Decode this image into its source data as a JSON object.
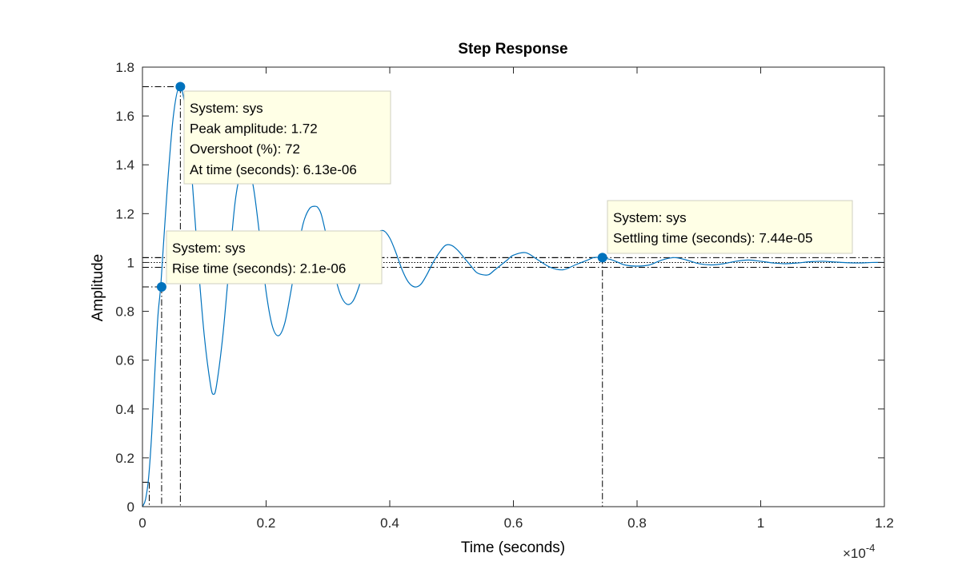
{
  "chart_data": {
    "type": "line",
    "title": "Step Response",
    "xlabel": "Time (seconds)",
    "ylabel": "Amplitude",
    "x_exponent_label": "×10",
    "x_exponent_power": "-4",
    "xlim": [
      0,
      1.2
    ],
    "ylim": [
      0,
      1.8
    ],
    "x_scale_factor": 0.0001,
    "xticks": [
      "0",
      "0.2",
      "0.4",
      "0.6",
      "0.8",
      "1",
      "1.2"
    ],
    "yticks": [
      "0",
      "0.2",
      "0.4",
      "0.6",
      "0.8",
      "1",
      "1.2",
      "1.4",
      "1.6",
      "1.8"
    ],
    "grid": false,
    "line_color": "#0072BD",
    "series": [
      {
        "x": [
          0,
          0.005,
          0.01,
          0.015,
          0.02,
          0.025,
          0.03,
          0.04,
          0.05,
          0.06,
          0.07,
          0.08,
          0.09,
          0.1,
          0.11,
          0.115,
          0.12,
          0.13,
          0.14,
          0.15,
          0.16,
          0.17,
          0.18,
          0.19,
          0.2,
          0.21,
          0.22,
          0.23,
          0.24,
          0.25,
          0.26,
          0.27,
          0.28,
          0.285,
          0.29,
          0.3,
          0.31,
          0.32,
          0.33,
          0.34,
          0.35,
          0.36,
          0.37,
          0.38,
          0.39,
          0.4,
          0.41,
          0.42,
          0.43,
          0.44,
          0.45,
          0.46,
          0.47,
          0.48,
          0.49,
          0.5,
          0.51,
          0.52,
          0.53,
          0.54,
          0.55,
          0.56,
          0.57,
          0.58,
          0.59,
          0.6,
          0.62,
          0.64,
          0.66,
          0.68,
          0.7,
          0.72,
          0.73,
          0.74,
          0.76,
          0.78,
          0.8,
          0.82,
          0.84,
          0.86,
          0.88,
          0.9,
          0.92,
          0.94,
          0.96,
          0.98,
          1.0,
          1.02,
          1.04,
          1.06,
          1.08,
          1.1,
          1.12,
          1.14,
          1.16,
          1.18,
          1.2
        ],
        "y": [
          0,
          0.03,
          0.12,
          0.3,
          0.55,
          0.78,
          0.92,
          1.3,
          1.6,
          1.72,
          1.62,
          1.35,
          1.0,
          0.7,
          0.5,
          0.46,
          0.5,
          0.7,
          0.98,
          1.25,
          1.38,
          1.41,
          1.3,
          1.1,
          0.88,
          0.74,
          0.7,
          0.75,
          0.88,
          1.03,
          1.16,
          1.22,
          1.23,
          1.22,
          1.19,
          1.08,
          0.96,
          0.87,
          0.83,
          0.84,
          0.9,
          0.99,
          1.07,
          1.12,
          1.13,
          1.1,
          1.04,
          0.97,
          0.92,
          0.9,
          0.91,
          0.95,
          1.0,
          1.04,
          1.07,
          1.07,
          1.05,
          1.02,
          0.99,
          0.96,
          0.95,
          0.95,
          0.97,
          0.99,
          1.01,
          1.03,
          1.04,
          1.01,
          0.98,
          0.97,
          0.99,
          1.01,
          1.02,
          1.02,
          1.01,
          0.99,
          0.985,
          0.99,
          1.01,
          1.02,
          1.01,
          0.995,
          0.99,
          0.995,
          1.005,
          1.01,
          1.005,
          0.998,
          0.995,
          0.998,
          1.003,
          1.005,
          1.002,
          0.999,
          0.998,
          1.0,
          1.0
        ]
      }
    ],
    "reference_lines": {
      "steady_state": 1.0,
      "settling_upper": 1.02,
      "settling_lower": 0.98
    },
    "datatips": [
      {
        "id": "peak",
        "x": 0.0613,
        "y": 1.72,
        "lines": [
          "System: sys",
          "Peak amplitude: 1.72",
          "Overshoot (%): 72",
          "At time (seconds): 6.13e-06"
        ]
      },
      {
        "id": "rise",
        "x": 0.031,
        "y": 0.9,
        "rise_start_x": 0.011,
        "rise_start_y": 0.1,
        "lines": [
          "System: sys",
          "Rise time (seconds): 2.1e-06"
        ]
      },
      {
        "id": "settling",
        "x": 0.744,
        "y": 1.02,
        "lines": [
          "System: sys",
          "Settling time (seconds): 7.44e-05"
        ]
      }
    ]
  }
}
